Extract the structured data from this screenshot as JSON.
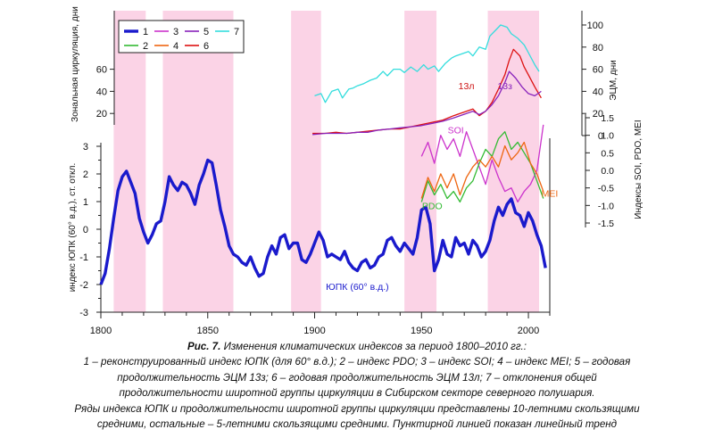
{
  "chart_data": {
    "type": "line",
    "x_axis": {
      "range": [
        1800,
        2010
      ],
      "ticks": [
        "1800",
        "1850",
        "1900",
        "1950",
        "2000"
      ],
      "tick_values": [
        1800,
        1850,
        1900,
        1950,
        2000
      ]
    },
    "shaded_periods": [
      [
        1806,
        1821
      ],
      [
        1829,
        1862
      ],
      [
        1889,
        1903
      ],
      [
        1942,
        1957
      ],
      [
        1981,
        2005
      ]
    ],
    "panels": [
      {
        "id": "top",
        "left_axis": {
          "label": "Зональная циркуляция, дни",
          "range": [
            0,
            100
          ],
          "ticks": [
            "20",
            "40",
            "60"
          ],
          "tick_values": [
            20,
            40,
            60
          ]
        },
        "right_axis": {
          "label": "ЭЦМ, дни",
          "range": [
            0,
            100
          ],
          "ticks": [
            "0",
            "20",
            "40",
            "60",
            "80",
            "100"
          ],
          "tick_values": [
            0,
            20,
            40,
            60,
            80,
            100
          ]
        },
        "series": [
          {
            "name": "7",
            "color": "#33dddd",
            "x": [
              1900,
              1903,
              1905,
              1908,
              1911,
              1913,
              1916,
              1918,
              1920,
              1923,
              1926,
              1929,
              1932,
              1934,
              1937,
              1940,
              1942,
              1945,
              1948,
              1951,
              1953,
              1956,
              1958,
              1961,
              1964,
              1966,
              1969,
              1972,
              1974,
              1977,
              1980,
              1982,
              1985,
              1987,
              1990,
              1992,
              1995,
              1998,
              2000,
              2003,
              2005
            ],
            "y": [
              36,
              38,
              30,
              40,
              42,
              34,
              42,
              43,
              45,
              47,
              50,
              52,
              58,
              54,
              60,
              60,
              57,
              62,
              58,
              64,
              60,
              63,
              58,
              65,
              70,
              72,
              74,
              76,
              72,
              80,
              78,
              90,
              96,
              100,
              98,
              92,
              88,
              82,
              75,
              64,
              58
            ]
          },
          {
            "name": "6",
            "color": "#dd1111",
            "x": [
              1899,
              1905,
              1910,
              1915,
              1920,
              1925,
              1930,
              1935,
              1940,
              1945,
              1950,
              1955,
              1960,
              1965,
              1968,
              1971,
              1974,
              1977,
              1980,
              1983,
              1986,
              1989,
              1991,
              1993,
              1996,
              1998,
              2000,
              2003,
              2006
            ],
            "y": [
              2,
              2,
              3,
              2,
              3,
              4,
              5,
              6,
              6,
              8,
              10,
              12,
              14,
              18,
              20,
              22,
              24,
              18,
              22,
              30,
              42,
              55,
              68,
              78,
              72,
              62,
              55,
              44,
              34
            ]
          },
          {
            "name": "5",
            "color": "#8822bb",
            "x": [
              1899,
              1905,
              1910,
              1915,
              1920,
              1925,
              1930,
              1935,
              1940,
              1945,
              1950,
              1955,
              1960,
              1965,
              1968,
              1971,
              1974,
              1977,
              1980,
              1983,
              1986,
              1989,
              1991,
              1994,
              1997,
              2000,
              2003,
              2006
            ],
            "y": [
              1,
              2,
              2,
              2,
              3,
              3,
              5,
              6,
              7,
              8,
              9,
              11,
              13,
              16,
              18,
              20,
              22,
              19,
              22,
              28,
              36,
              48,
              58,
              52,
              44,
              38,
              36,
              40
            ]
          }
        ],
        "annotations": [
          {
            "text": "13л",
            "x": 1971,
            "y": 42,
            "color": "#cc1111"
          },
          {
            "text": "13з",
            "x": 1989,
            "y": 42,
            "color": "#8822bb"
          }
        ]
      },
      {
        "id": "middle",
        "right_axis": {
          "label": "Индексы SOI, PDO, MEI",
          "range": [
            -1.5,
            1.5
          ],
          "ticks": [
            "1.5",
            "1.0",
            "0.5",
            "0.0",
            "-0.5",
            "-1.0",
            "-1.5"
          ],
          "tick_values": [
            1.5,
            1.0,
            0.5,
            0.0,
            -0.5,
            -1.0,
            -1.5
          ]
        },
        "series": [
          {
            "name": "3",
            "color": "#cc33cc",
            "x": [
              1950,
              1953,
              1956,
              1959,
              1962,
              1965,
              1968,
              1971,
              1974,
              1977,
              1980,
              1983,
              1986,
              1989,
              1992,
              1995,
              1998,
              2001,
              2004,
              2007
            ],
            "y": [
              0.4,
              0.8,
              0.2,
              1.0,
              0.6,
              0.9,
              0.4,
              1.1,
              0.6,
              0.1,
              -0.4,
              0.3,
              -0.2,
              -0.6,
              -0.5,
              -0.9,
              -0.6,
              -0.4,
              0.0,
              1.3
            ]
          },
          {
            "name": "2",
            "color": "#33bb33",
            "x": [
              1950,
              1953,
              1956,
              1959,
              1962,
              1965,
              1968,
              1971,
              1974,
              1977,
              1980,
              1983,
              1986,
              1989,
              1992,
              1995,
              1998,
              2001,
              2004,
              2007
            ],
            "y": [
              -0.9,
              -0.3,
              -0.7,
              -0.4,
              -0.8,
              -0.6,
              -0.9,
              -0.5,
              -0.3,
              0.2,
              0.6,
              0.4,
              0.9,
              1.1,
              0.6,
              0.8,
              0.5,
              0.2,
              -0.3,
              -0.8
            ]
          },
          {
            "name": "4",
            "color": "#ee6611",
            "x": [
              1950,
              1953,
              1956,
              1959,
              1962,
              1965,
              1968,
              1971,
              1974,
              1977,
              1980,
              1983,
              1986,
              1989,
              1992,
              1995,
              1998,
              2001,
              2004,
              2007
            ],
            "y": [
              -0.8,
              -0.2,
              -0.6,
              -0.1,
              -0.5,
              -0.1,
              -0.7,
              -0.2,
              0.1,
              0.3,
              0.1,
              0.4,
              0.1,
              0.7,
              0.3,
              0.5,
              0.8,
              0.2,
              -0.1,
              -0.6
            ]
          }
        ],
        "annotations": [
          {
            "text": "SOI",
            "x": 1966,
            "y": 1.05,
            "color": "#cc33cc"
          },
          {
            "text": "PDO",
            "x": 1955,
            "y": -1.1,
            "color": "#33bb33"
          },
          {
            "text": "MEI",
            "x": 2010,
            "y": -0.75,
            "color": "#ee6611"
          }
        ]
      },
      {
        "id": "bottom",
        "left_axis": {
          "label": "индекс ЮПК (60° в.д.), ст. откл.",
          "range": [
            -3,
            3
          ],
          "ticks": [
            "3",
            "2",
            "1",
            "0",
            "-1",
            "-2",
            "-3"
          ],
          "tick_values": [
            3,
            2,
            1,
            0,
            -1,
            -2,
            -3
          ]
        },
        "series": [
          {
            "name": "1",
            "color": "#1a1acc",
            "x": [
              1800,
              1802,
              1804,
              1806,
              1808,
              1810,
              1812,
              1814,
              1816,
              1818,
              1820,
              1822,
              1824,
              1826,
              1828,
              1830,
              1832,
              1834,
              1836,
              1838,
              1840,
              1842,
              1844,
              1846,
              1848,
              1850,
              1852,
              1854,
              1856,
              1858,
              1860,
              1862,
              1864,
              1866,
              1868,
              1870,
              1872,
              1874,
              1876,
              1878,
              1880,
              1882,
              1884,
              1886,
              1888,
              1890,
              1892,
              1894,
              1896,
              1898,
              1900,
              1902,
              1904,
              1906,
              1908,
              1910,
              1912,
              1914,
              1916,
              1918,
              1920,
              1922,
              1924,
              1926,
              1928,
              1930,
              1932,
              1934,
              1936,
              1938,
              1940,
              1942,
              1944,
              1946,
              1948,
              1950,
              1952,
              1954,
              1956,
              1958,
              1960,
              1962,
              1964,
              1966,
              1968,
              1970,
              1972,
              1974,
              1976,
              1978,
              1980,
              1982,
              1984,
              1986,
              1988,
              1990,
              1992,
              1994,
              1996,
              1998,
              2000,
              2002,
              2004,
              2006,
              2008
            ],
            "y": [
              -2.0,
              -1.6,
              -0.7,
              0.4,
              1.4,
              1.9,
              2.1,
              1.7,
              1.3,
              0.4,
              -0.1,
              -0.5,
              -0.2,
              0.2,
              0.3,
              1.0,
              1.9,
              1.6,
              1.4,
              1.7,
              1.6,
              1.3,
              0.9,
              1.6,
              2.0,
              2.5,
              2.4,
              1.6,
              0.7,
              0.1,
              -0.6,
              -0.9,
              -1.0,
              -1.2,
              -1.3,
              -1.0,
              -1.4,
              -1.7,
              -1.6,
              -1.0,
              -0.6,
              -0.9,
              -0.3,
              -0.2,
              -0.7,
              -0.5,
              -0.5,
              -1.1,
              -1.2,
              -0.9,
              -0.5,
              -0.1,
              -0.4,
              -1.0,
              -0.9,
              -1.0,
              -1.1,
              -0.8,
              -1.2,
              -1.4,
              -1.5,
              -1.2,
              -1.1,
              -1.4,
              -1.3,
              -1.0,
              -0.9,
              -0.4,
              -0.3,
              -0.6,
              -0.8,
              -0.5,
              -0.7,
              -0.9,
              -0.3,
              0.7,
              0.8,
              0.2,
              -1.5,
              -1.1,
              -0.4,
              -0.9,
              -1.0,
              -0.3,
              -0.6,
              -0.5,
              -0.9,
              -0.4,
              -0.6,
              -1.0,
              -0.8,
              -0.4,
              0.3,
              0.8,
              0.5,
              0.9,
              1.1,
              0.6,
              0.5,
              0.1,
              0.6,
              0.3,
              -0.2,
              -0.6,
              -1.4
            ]
          }
        ],
        "annotations": [
          {
            "text": "ЮПК (60° в.д.)",
            "x": 1920,
            "y": -2.2,
            "color": "#1a1acc"
          }
        ]
      }
    ],
    "legend": {
      "placement": "top-left",
      "entries": [
        {
          "label": "1",
          "color": "#1a1acc"
        },
        {
          "label": "3",
          "color": "#cc33cc"
        },
        {
          "label": "5",
          "color": "#8822bb"
        },
        {
          "label": "7",
          "color": "#33dddd"
        },
        {
          "label": "2",
          "color": "#33bb33"
        },
        {
          "label": "4",
          "color": "#ee6611"
        },
        {
          "label": "6",
          "color": "#dd1111"
        }
      ]
    }
  },
  "caption": {
    "fig_label": "Рис. 7.",
    "title": " Изменения климатических индексов за период 1800–2010 гг.:",
    "lines": [
      "1 – реконструированный индекс ЮПК (для 60° в.д.); 2 – индекс PDO; 3 – индекс SOI; 4 – индекс MEI; 5 – годовая",
      "продолжительность ЭЦМ 13з; 6 – годовая продолжительность ЭЦМ 13л; 7 – отклонения общей",
      "продолжительности широтной группы циркуляции в Сибирском секторе северного полушария.",
      "Ряды индекса ЮПК и продолжительности широтной группы циркуляции представлены 10-летними скользящими",
      "средними, остальные – 5-летними скользящими средними. Пунктирной линией показан линейный тренд"
    ]
  }
}
